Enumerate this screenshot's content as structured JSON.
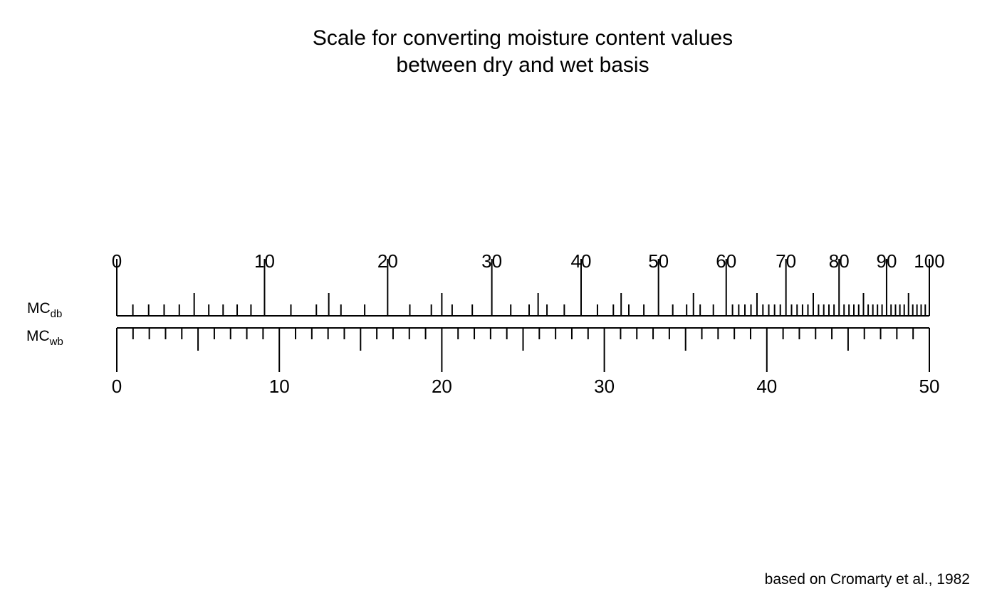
{
  "chart_data": {
    "type": "dual-scale nomogram",
    "title_lines": [
      "Scale for converting moisture content values",
      "between dry and wet basis"
    ],
    "scales": [
      {
        "id": "db",
        "label_main": "MC",
        "label_sub": "db",
        "relation": "MCwb = 100 * MCdb / (100 + MCdb)",
        "range": [
          0,
          100
        ],
        "major_ticks": [
          0,
          10,
          20,
          30,
          40,
          50,
          60,
          70,
          80,
          90,
          100
        ],
        "tick_labels": [
          "0",
          "10",
          "20",
          "30",
          "40",
          "50",
          "60",
          "70",
          "80",
          "90",
          "100"
        ]
      },
      {
        "id": "wb",
        "label_main": "MC",
        "label_sub": "wb",
        "range": [
          0,
          50
        ],
        "major_ticks": [
          0,
          10,
          20,
          30,
          40,
          50
        ],
        "tick_labels": [
          "0",
          "10",
          "20",
          "30",
          "40",
          "50"
        ],
        "minor_step": 1,
        "mid_step": 5
      }
    ],
    "credit": "based on Cromarty et al., 1982"
  }
}
